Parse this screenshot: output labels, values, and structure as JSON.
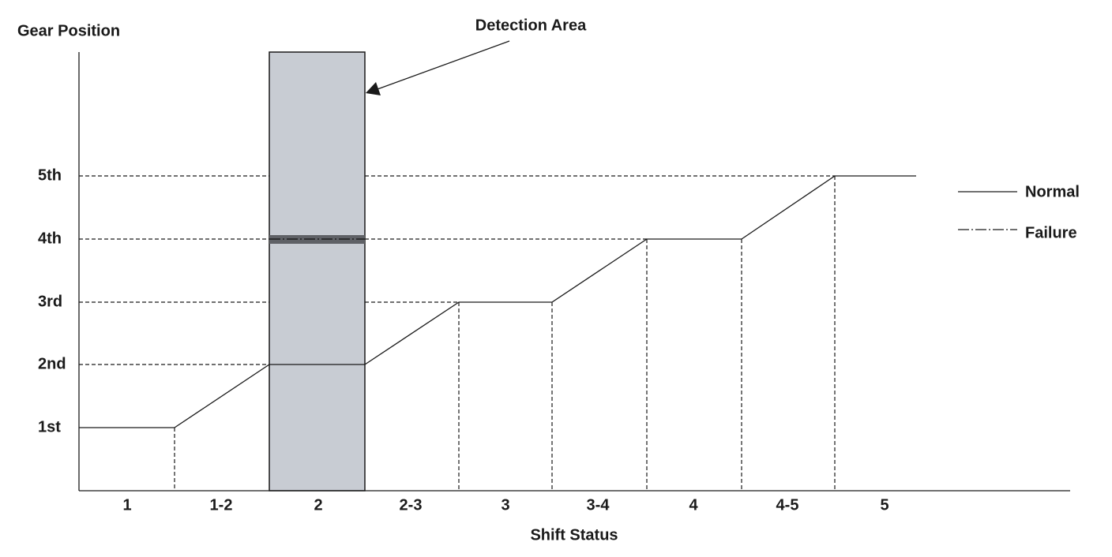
{
  "axis": {
    "y_title": "Gear Position",
    "x_title": "Shift Status"
  },
  "annotation": "Detection Area",
  "y_labels": [
    "1st",
    "2nd",
    "3rd",
    "4th",
    "5th"
  ],
  "x_labels": [
    "1",
    "1-2",
    "2",
    "2-3",
    "3",
    "3-4",
    "4",
    "4-5",
    "5"
  ],
  "legend": {
    "normal": "Normal",
    "failure": "Failure"
  }
}
